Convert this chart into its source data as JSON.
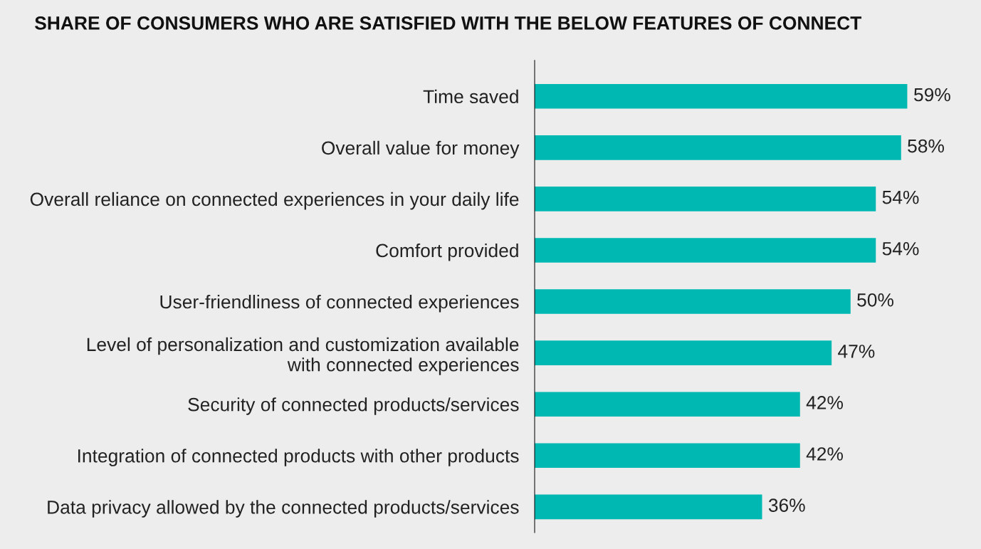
{
  "chart_data": {
    "type": "bar",
    "orientation": "horizontal",
    "title": "SHARE OF CONSUMERS WHO ARE SATISFIED WITH THE BELOW FEATURES OF CONNECT",
    "categories": [
      "Time saved",
      "Overall value for money",
      "Overall reliance on connected experiences in your daily life",
      "Comfort provided",
      "User-friendliness of connected experiences",
      "Level of personalization and customization available\nwith connected experiences",
      "Security of connected products/services",
      "Integration of connected products with other products",
      "Data privacy allowed by the connected products/services"
    ],
    "values": [
      59,
      58,
      54,
      54,
      50,
      47,
      42,
      42,
      36
    ],
    "value_labels": [
      "59%",
      "58%",
      "54%",
      "54%",
      "50%",
      "47%",
      "42%",
      "42%",
      "36%"
    ],
    "color": "#00b8b2",
    "grid": false,
    "legend": false,
    "tick_labels": "y"
  }
}
